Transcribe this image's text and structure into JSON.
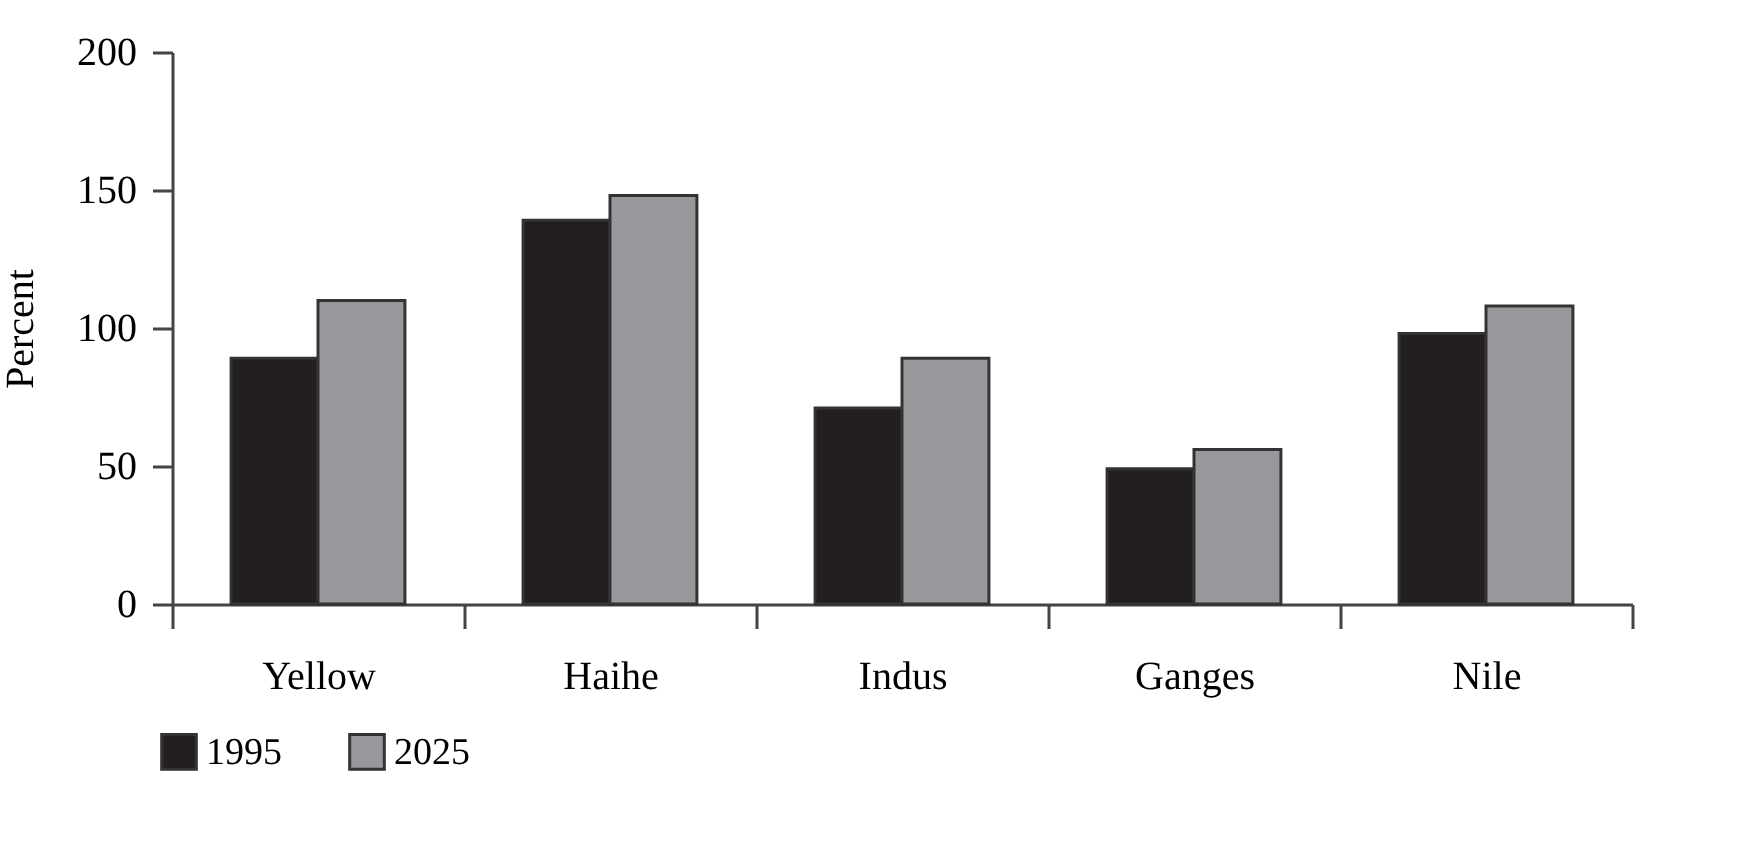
{
  "chart_data": {
    "type": "bar",
    "ylabel": "Percent",
    "categories": [
      "Yellow",
      "Haihe",
      "Indus",
      "Ganges",
      "Nile"
    ],
    "series": [
      {
        "name": "1995",
        "color": "#231f20",
        "values": [
          89,
          139,
          71,
          49,
          98
        ]
      },
      {
        "name": "2025",
        "color": "#97989b",
        "values": [
          110,
          148,
          89,
          56,
          108
        ]
      }
    ],
    "ylim": [
      0,
      200
    ],
    "yticks": [
      0,
      50,
      100,
      150,
      200
    ],
    "grid": false,
    "legend": "bottom left"
  }
}
